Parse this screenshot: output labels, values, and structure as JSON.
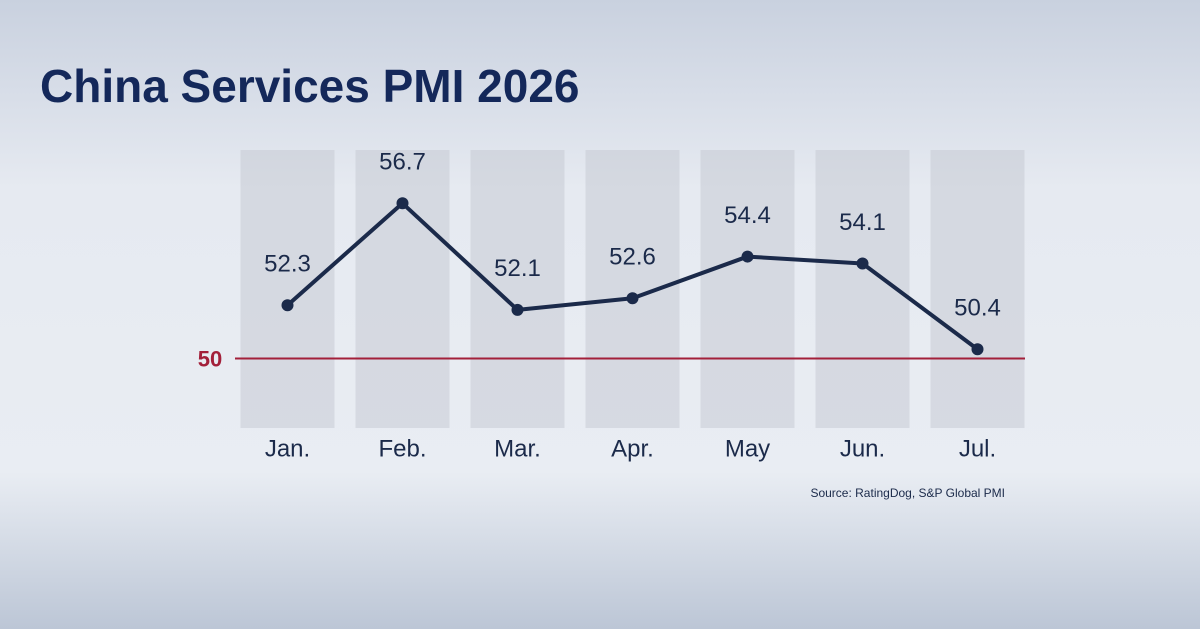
{
  "chart_data": {
    "type": "line",
    "title": "China Services PMI 2026",
    "categories": [
      "Jan.",
      "Feb.",
      "Mar.",
      "Apr.",
      "May",
      "Jun.",
      "Jul."
    ],
    "values": [
      52.3,
      56.7,
      52.1,
      52.6,
      54.4,
      54.1,
      50.4
    ],
    "color": "#1b2a4a",
    "ylim": [
      47,
      59
    ],
    "reference_line": {
      "value": 50,
      "color": "#a3203a"
    },
    "source": "Source: RatingDog, S&P Global PMI"
  }
}
